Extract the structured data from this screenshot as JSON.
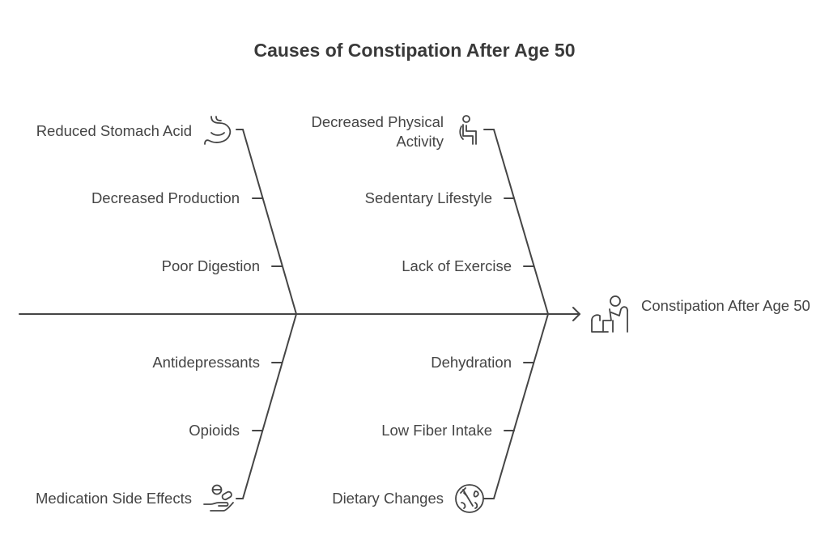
{
  "title": "Causes of Constipation After Age 50",
  "effect": {
    "label": "Constipation After Age 50",
    "icon": "elderly-person-icon"
  },
  "categories": [
    {
      "name": "Reduced Stomach Acid",
      "icon": "stomach-icon",
      "causes": [
        "Decreased Production",
        "Poor Digestion"
      ]
    },
    {
      "name": "Decreased Physical Activity",
      "icon": "sitting-person-icon",
      "causes": [
        "Sedentary Lifestyle",
        "Lack of Exercise"
      ]
    },
    {
      "name": "Medication Side Effects",
      "icon": "pills-hand-icon",
      "causes": [
        "Antidepressants",
        "Opioids"
      ]
    },
    {
      "name": "Dietary Changes",
      "icon": "food-plate-icon",
      "causes": [
        "Dehydration",
        "Low Fiber Intake"
      ]
    }
  ]
}
